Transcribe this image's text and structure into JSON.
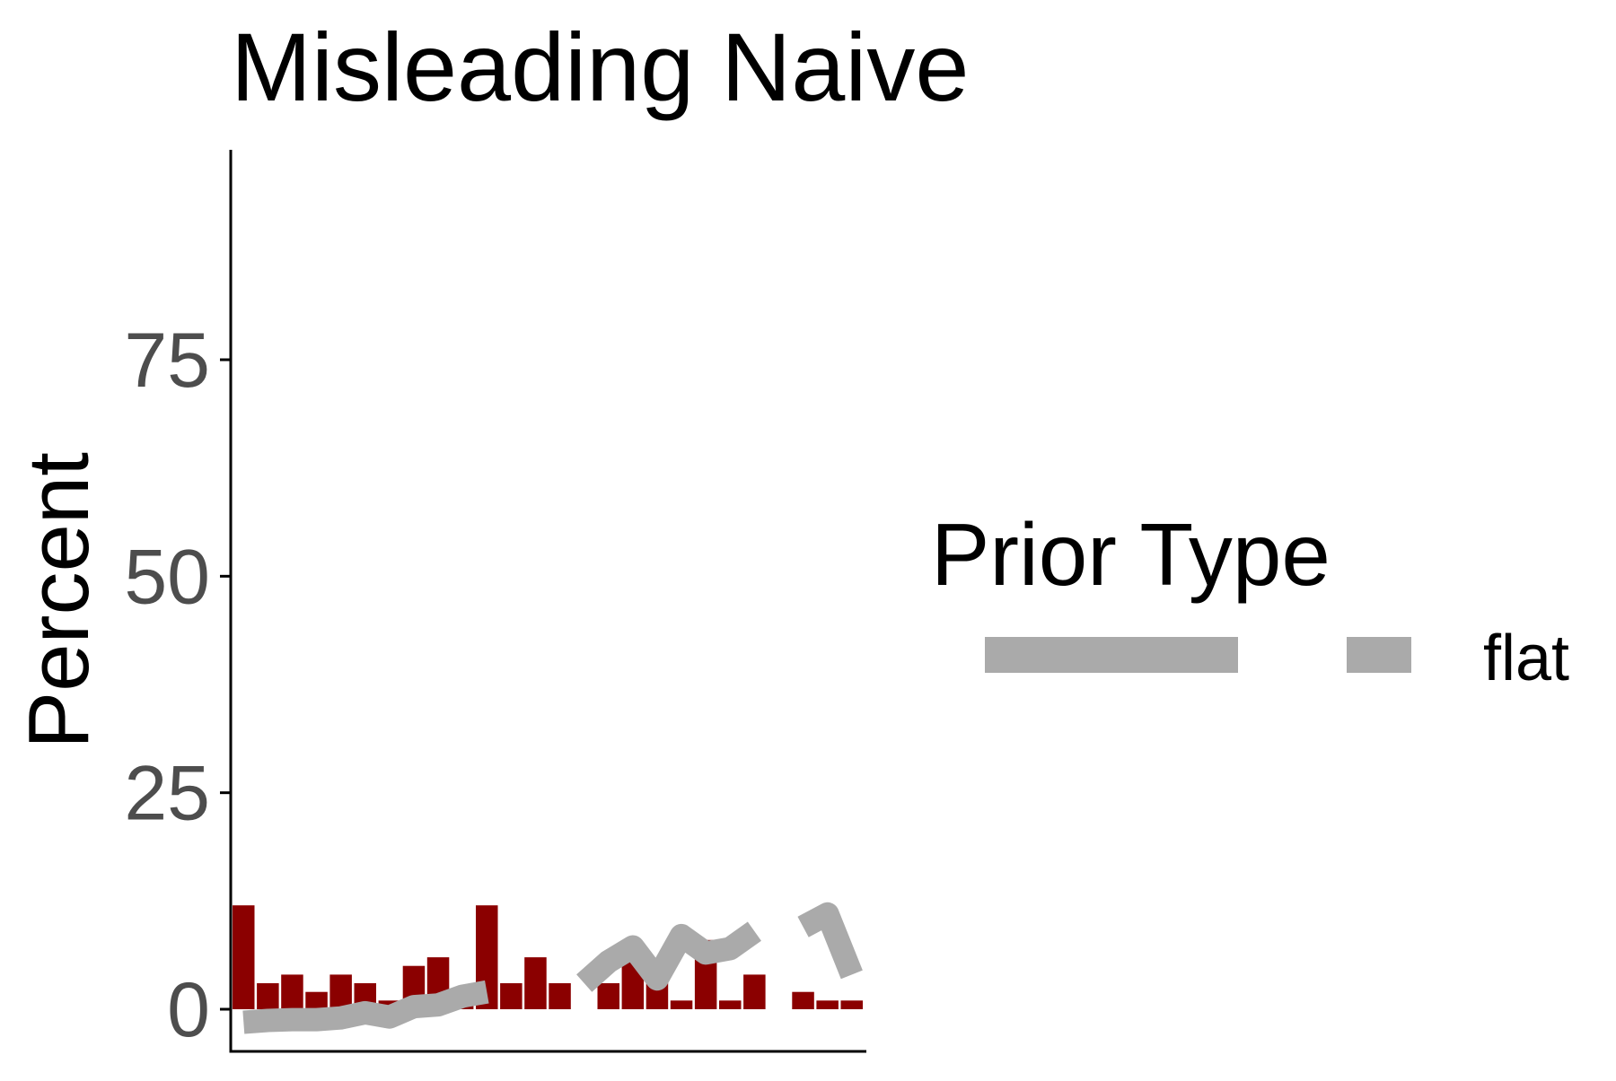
{
  "chart_data": {
    "type": "bar",
    "title": "Misleading Naive",
    "xlabel": "",
    "ylabel": "Percent",
    "ylim": [
      0,
      98
    ],
    "yticks": [
      0,
      25,
      50,
      75
    ],
    "grid": false,
    "bar_color": "#8b0000",
    "line_color": "#aaaaaa",
    "bars": {
      "x": [
        0,
        1,
        2,
        3,
        4,
        5,
        6,
        7,
        8,
        9,
        10,
        11,
        12,
        13,
        14,
        15,
        16,
        17,
        18,
        19,
        20,
        21,
        22,
        23,
        24,
        25
      ],
      "values": [
        12,
        3,
        4,
        2,
        4,
        3,
        1,
        5,
        6,
        1,
        12,
        3,
        6,
        3,
        0,
        3,
        6,
        4,
        1,
        8,
        1,
        4,
        0,
        2,
        1,
        1
      ]
    },
    "series": [
      {
        "name": "flat",
        "segments": [
          [
            [
              0,
              -1.5
            ],
            [
              1,
              -1.3
            ],
            [
              2,
              -1.2
            ],
            [
              3,
              -1.2
            ],
            [
              4,
              -1.0
            ],
            [
              5,
              -0.4
            ],
            [
              6,
              -0.9
            ],
            [
              7,
              0.3
            ],
            [
              8,
              0.5
            ],
            [
              9,
              1.5
            ],
            [
              10,
              2.0
            ]
          ],
          [
            [
              14,
              3.0
            ],
            [
              15,
              5.5
            ],
            [
              16,
              7.2
            ],
            [
              17,
              3.5
            ],
            [
              18,
              8.5
            ],
            [
              19,
              6.5
            ],
            [
              20,
              7.0
            ],
            [
              21,
              9.0
            ]
          ],
          [
            [
              23,
              9.5
            ],
            [
              24,
              11.0
            ],
            [
              25,
              4.0
            ]
          ]
        ]
      }
    ],
    "legend": {
      "title": "Prior Type",
      "placement": "right",
      "entries": [
        "flat"
      ]
    }
  }
}
